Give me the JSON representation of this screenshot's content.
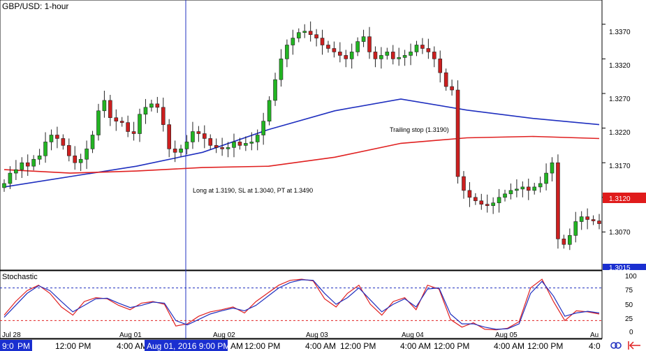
{
  "chart_data": {
    "type": "candlestick",
    "title": "GBP/USD: 1-hour",
    "price_axis": {
      "range": [
        1.3015,
        1.3405
      ],
      "ticks": [
        "1.3370",
        "1.3320",
        "1.3270",
        "1.3220",
        "1.3170",
        "1.3120",
        "1.3070"
      ],
      "current_price_label": "1.3120",
      "bottom_marker_label": "1.3015"
    },
    "date_labels": [
      "Jul 28",
      "Aug 01",
      "Aug 02",
      "Aug 03",
      "Aug 04",
      "Aug 05",
      "Au"
    ],
    "time_labels": [
      "9:0",
      "PM",
      "12:00 PM",
      "4:00 AM",
      "9:00 PM",
      "AM",
      "12:00 PM",
      "4:00 AM",
      "12:00 PM",
      "4:00 AM",
      "12:00 PM",
      "4:00 AM",
      "12:00 PM",
      "4:0"
    ],
    "crosshair_time_label": "Aug 01, 2016 9:00 PM",
    "annotations": [
      "Long at 1.3190, SL at 1.3040, PT at 1.3490",
      "Trailing stop (1.3190)"
    ],
    "closes": [
      1.314,
      1.3155,
      1.316,
      1.317,
      1.3165,
      1.3175,
      1.318,
      1.32,
      1.321,
      1.3205,
      1.3195,
      1.318,
      1.317,
      1.3175,
      1.319,
      1.321,
      1.3245,
      1.326,
      1.3235,
      1.323,
      1.3228,
      1.3215,
      1.3212,
      1.324,
      1.325,
      1.3255,
      1.325,
      1.3225,
      1.319,
      1.3185,
      1.319,
      1.32,
      1.3215,
      1.3212,
      1.3205,
      1.3195,
      1.3192,
      1.319,
      1.3192,
      1.32,
      1.3195,
      1.3198,
      1.32,
      1.321,
      1.323,
      1.326,
      1.329,
      1.332,
      1.334,
      1.335,
      1.3358,
      1.336,
      1.3355,
      1.335,
      1.334,
      1.3335,
      1.333,
      1.3325,
      1.332,
      1.333,
      1.3345,
      1.3352,
      1.333,
      1.332,
      1.3325,
      1.333,
      1.332,
      1.3322,
      1.3325,
      1.333,
      1.334,
      1.3335,
      1.333,
      1.332,
      1.33,
      1.328,
      1.3275,
      1.315,
      1.313,
      1.312,
      1.3115,
      1.311,
      1.3108,
      1.3112,
      1.312,
      1.3125,
      1.313,
      1.3132,
      1.3135,
      1.313,
      1.3135,
      1.314,
      1.3155,
      1.317,
      1.306,
      1.3052,
      1.3065,
      1.3085,
      1.3092,
      1.3088,
      1.3086,
      1.3082
    ],
    "moving_averages": [
      {
        "color": "#1f2fbf",
        "values": [
          1.3135,
          1.315,
          1.3165,
          1.3185,
          1.3218,
          1.3245,
          1.3262,
          1.3246,
          1.3234,
          1.3225
        ]
      },
      {
        "color": "#e02020",
        "values": [
          1.316,
          1.3155,
          1.3158,
          1.3163,
          1.3165,
          1.3178,
          1.3198,
          1.3206,
          1.3208,
          1.3205
        ]
      }
    ],
    "stochastic": {
      "title": "Stochastic",
      "levels": [
        80,
        20
      ],
      "ticks": [
        "100",
        "75",
        "50",
        "25",
        "0"
      ],
      "k_color": "#e02020",
      "d_color": "#1f2fbf",
      "k": [
        30,
        55,
        75,
        85,
        70,
        45,
        30,
        55,
        62,
        60,
        48,
        40,
        52,
        55,
        50,
        10,
        14,
        28,
        36,
        40,
        45,
        34,
        55,
        70,
        85,
        94,
        96,
        93,
        60,
        45,
        70,
        85,
        50,
        30,
        55,
        62,
        40,
        85,
        78,
        22,
        8,
        16,
        4,
        3,
        6,
        18,
        80,
        96,
        55,
        20,
        38,
        36,
        32
      ],
      "d": [
        26,
        48,
        70,
        84,
        75,
        55,
        36,
        48,
        60,
        61,
        52,
        44,
        48,
        54,
        52,
        20,
        12,
        22,
        32,
        38,
        43,
        38,
        48,
        64,
        80,
        90,
        95,
        94,
        70,
        50,
        62,
        80,
        58,
        36,
        50,
        60,
        45,
        78,
        80,
        32,
        14,
        14,
        8,
        4,
        5,
        14,
        70,
        92,
        65,
        28,
        34,
        37,
        34
      ]
    }
  }
}
